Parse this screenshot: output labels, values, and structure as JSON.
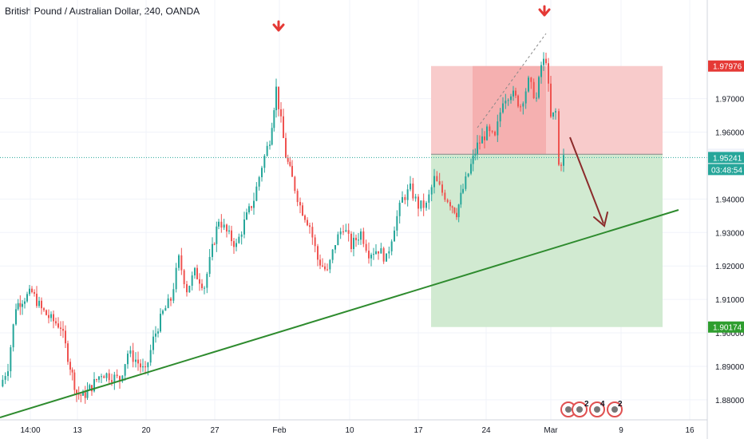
{
  "chart_title": "British Pound / Australian Dollar, 240, OANDA",
  "chart_data": {
    "type": "candlestick",
    "title": "British Pound / Australian Dollar, 240, OANDA",
    "y_ticks": [
      "1.97000",
      "1.96000",
      "1.94000",
      "1.93000",
      "1.92000",
      "1.91000",
      "1.90000",
      "1.89000",
      "1.88000"
    ],
    "y_tick_values": [
      1.97,
      1.96,
      1.94,
      1.93,
      1.92,
      1.91,
      1.9,
      1.89,
      1.88
    ],
    "x_ticks": [
      "14:00",
      "13",
      "20",
      "27",
      "Feb",
      "10",
      "17",
      "24",
      "Mar",
      "9",
      "16"
    ],
    "ylim": [
      1.874,
      1.9995
    ],
    "price_labels": {
      "stop_loss": "1.97976",
      "entry": "1.95338",
      "last_price": "1.95241",
      "countdown": "03:48:54",
      "take_profit": "1.90174"
    },
    "price_values": {
      "stop_loss": 1.97976,
      "entry": 1.95338,
      "last_price": 1.95241,
      "take_profit": 1.90174
    },
    "colors": {
      "up": "#26a69a",
      "down": "#ef5350",
      "trendline": "#2e8b2e",
      "risk_zone": "#f8c8c8",
      "reward_zone": "#cfe9cf",
      "arrow_marker": "#e53935",
      "forecast_arrow": "#8b2b2b",
      "entry_badge": "#f0f3fa"
    },
    "close_path": [
      [
        0,
        1.884
      ],
      [
        10,
        1.89
      ],
      [
        20,
        1.908
      ],
      [
        28,
        1.91
      ],
      [
        40,
        1.912
      ],
      [
        52,
        1.907
      ],
      [
        64,
        1.904
      ],
      [
        76,
        1.902
      ],
      [
        88,
        1.89
      ],
      [
        96,
        1.882
      ],
      [
        104,
        1.881
      ],
      [
        115,
        1.884
      ],
      [
        127,
        1.888
      ],
      [
        140,
        1.887
      ],
      [
        150,
        1.886
      ],
      [
        160,
        1.894
      ],
      [
        170,
        1.892
      ],
      [
        182,
        1.888
      ],
      [
        192,
        1.898
      ],
      [
        204,
        1.906
      ],
      [
        214,
        1.91
      ],
      [
        224,
        1.922
      ],
      [
        234,
        1.913
      ],
      [
        244,
        1.918
      ],
      [
        256,
        1.914
      ],
      [
        266,
        1.925
      ],
      [
        274,
        1.934
      ],
      [
        284,
        1.93
      ],
      [
        296,
        1.926
      ],
      [
        306,
        1.933
      ],
      [
        318,
        1.94
      ],
      [
        328,
        1.95
      ],
      [
        338,
        1.958
      ],
      [
        346,
        1.973
      ],
      [
        352,
        1.963
      ],
      [
        358,
        1.953
      ],
      [
        366,
        1.946
      ],
      [
        376,
        1.938
      ],
      [
        388,
        1.932
      ],
      [
        398,
        1.922
      ],
      [
        410,
        1.918
      ],
      [
        420,
        1.927
      ],
      [
        430,
        1.932
      ],
      [
        440,
        1.926
      ],
      [
        452,
        1.93
      ],
      [
        462,
        1.924
      ],
      [
        474,
        1.925
      ],
      [
        484,
        1.922
      ],
      [
        494,
        1.932
      ],
      [
        504,
        1.94
      ],
      [
        514,
        1.943
      ],
      [
        524,
        1.938
      ],
      [
        534,
        1.938
      ],
      [
        544,
        1.946
      ],
      [
        554,
        1.942
      ],
      [
        564,
        1.939
      ],
      [
        572,
        1.936
      ],
      [
        580,
        1.943
      ],
      [
        590,
        1.95
      ],
      [
        598,
        1.956
      ],
      [
        610,
        1.96
      ],
      [
        620,
        1.958
      ],
      [
        630,
        1.97
      ],
      [
        640,
        1.972
      ],
      [
        652,
        1.968
      ],
      [
        662,
        1.975
      ],
      [
        672,
        1.97
      ],
      [
        678,
        1.98
      ],
      [
        684,
        1.982
      ],
      [
        690,
        1.964
      ],
      [
        696,
        1.966
      ],
      [
        700,
        1.95
      ],
      [
        706,
        1.9524
      ]
    ],
    "stop_loss": 1.97976,
    "entry": 1.95338,
    "take_profit": 1.90174
  }
}
